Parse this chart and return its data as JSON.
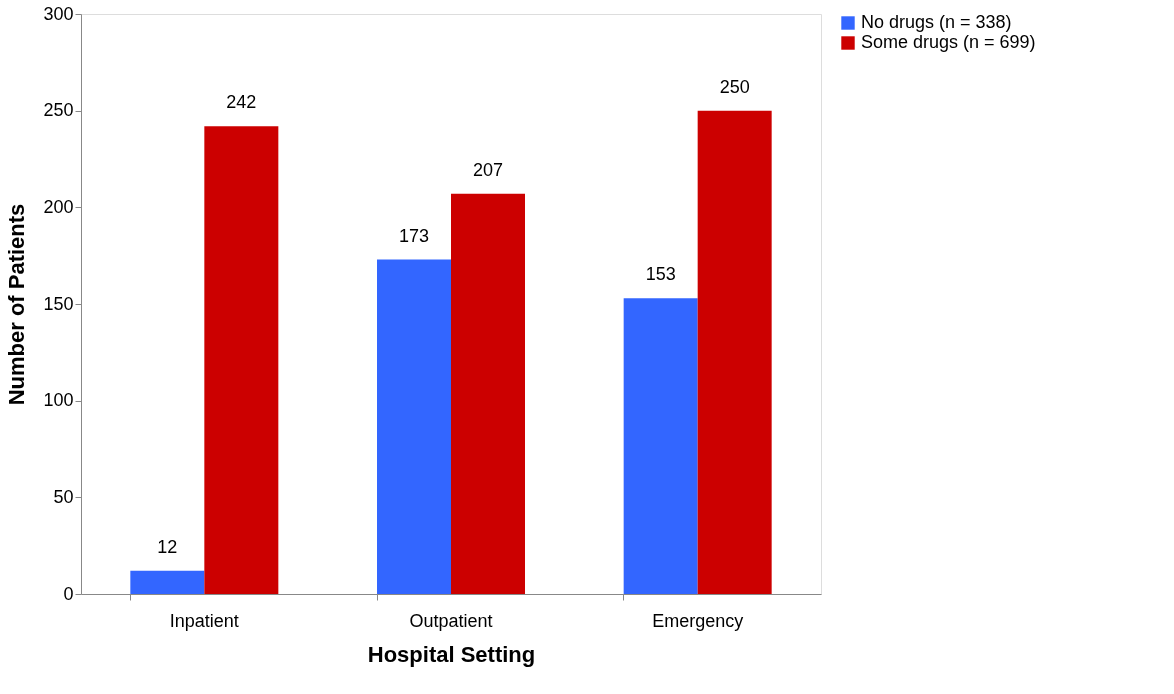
{
  "chart_data": {
    "type": "bar",
    "xlabel": "Hospital Setting",
    "ylabel": "Number of Patients",
    "categories": [
      "Inpatient",
      "Outpatient",
      "Emergency"
    ],
    "series": [
      {
        "name": "No drugs  (n = 338)",
        "color": "#3366ff",
        "values": [
          12,
          173,
          153
        ]
      },
      {
        "name": "Some drugs  (n = 699)",
        "color": "#cc0000",
        "values": [
          242,
          207,
          250
        ]
      }
    ],
    "ylim": [
      0,
      300
    ],
    "yticks": [
      0,
      50,
      100,
      150,
      200,
      250,
      300
    ],
    "grid": false,
    "legend": "right",
    "data_labels": true
  }
}
